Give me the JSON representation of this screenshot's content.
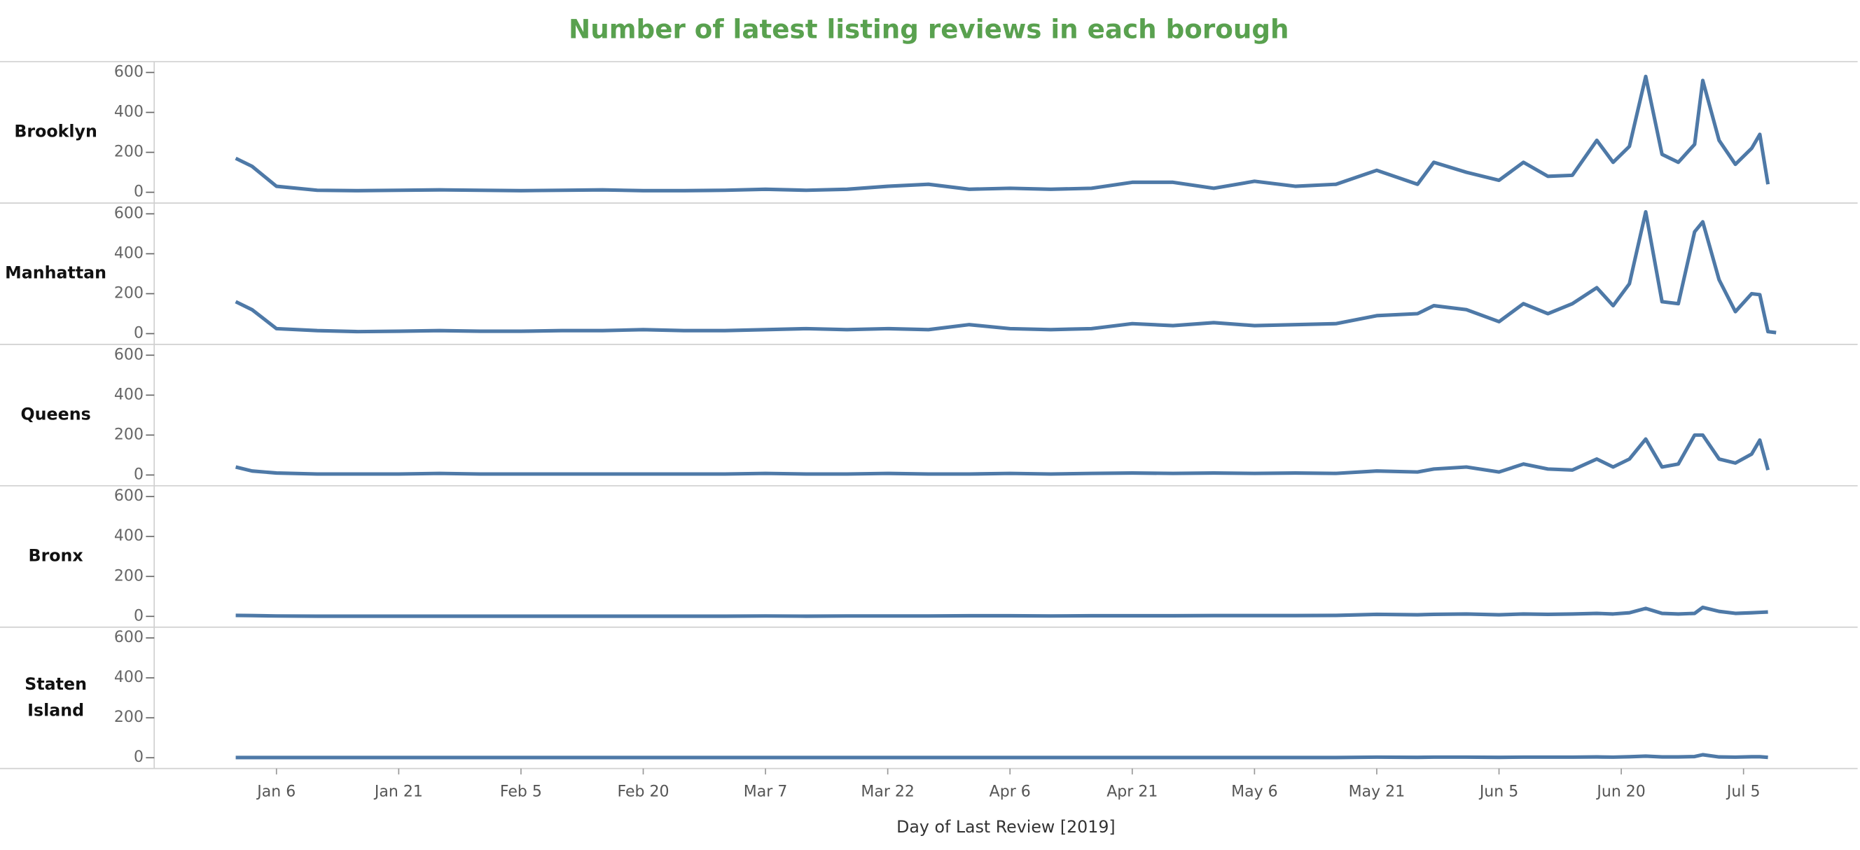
{
  "chart_data": {
    "type": "line",
    "title": "Number of latest listing reviews in each borough",
    "x_label": "Day of Last Review [2019]",
    "x": [
      "2019-01-01",
      "2019-01-03",
      "2019-01-06",
      "2019-01-11",
      "2019-01-16",
      "2019-01-21",
      "2019-01-26",
      "2019-01-31",
      "2019-02-05",
      "2019-02-10",
      "2019-02-15",
      "2019-02-20",
      "2019-02-25",
      "2019-03-02",
      "2019-03-07",
      "2019-03-12",
      "2019-03-17",
      "2019-03-22",
      "2019-03-27",
      "2019-04-01",
      "2019-04-06",
      "2019-04-11",
      "2019-04-16",
      "2019-04-21",
      "2019-04-26",
      "2019-05-01",
      "2019-05-06",
      "2019-05-11",
      "2019-05-16",
      "2019-05-21",
      "2019-05-26",
      "2019-05-28",
      "2019-06-01",
      "2019-06-05",
      "2019-06-08",
      "2019-06-11",
      "2019-06-14",
      "2019-06-17",
      "2019-06-19",
      "2019-06-21",
      "2019-06-23",
      "2019-06-25",
      "2019-06-27",
      "2019-06-29",
      "2019-06-30",
      "2019-07-02",
      "2019-07-04",
      "2019-07-06",
      "2019-07-07",
      "2019-07-08",
      "2019-07-09"
    ],
    "series": [
      {
        "name": "Brooklyn",
        "color": "#4e79a7",
        "values": [
          170,
          130,
          30,
          10,
          8,
          10,
          12,
          10,
          8,
          10,
          12,
          8,
          8,
          10,
          15,
          10,
          15,
          30,
          40,
          15,
          20,
          15,
          20,
          50,
          50,
          20,
          55,
          30,
          40,
          110,
          40,
          150,
          100,
          60,
          150,
          80,
          85,
          260,
          150,
          230,
          580,
          190,
          150,
          240,
          560,
          260,
          140,
          220,
          290,
          40,
          null
        ]
      },
      {
        "name": "Manhattan",
        "color": "#4e79a7",
        "values": [
          160,
          120,
          25,
          15,
          10,
          12,
          15,
          12,
          12,
          15,
          15,
          20,
          15,
          15,
          20,
          25,
          20,
          25,
          20,
          45,
          25,
          20,
          25,
          50,
          40,
          55,
          40,
          45,
          50,
          90,
          100,
          140,
          120,
          60,
          150,
          100,
          150,
          230,
          140,
          250,
          610,
          160,
          150,
          510,
          560,
          270,
          110,
          200,
          195,
          10,
          5
        ]
      },
      {
        "name": "Queens",
        "color": "#4e79a7",
        "values": [
          40,
          20,
          10,
          5,
          5,
          5,
          8,
          5,
          5,
          5,
          5,
          5,
          5,
          5,
          8,
          5,
          5,
          8,
          5,
          5,
          8,
          5,
          8,
          10,
          8,
          10,
          8,
          10,
          8,
          20,
          15,
          30,
          40,
          15,
          55,
          30,
          25,
          80,
          40,
          80,
          180,
          40,
          55,
          200,
          200,
          80,
          60,
          105,
          175,
          25,
          null
        ]
      },
      {
        "name": "Bronx",
        "color": "#4e79a7",
        "values": [
          5,
          4,
          2,
          1,
          1,
          1,
          1,
          1,
          1,
          1,
          1,
          1,
          1,
          1,
          2,
          1,
          2,
          2,
          2,
          3,
          3,
          2,
          3,
          3,
          3,
          4,
          4,
          4,
          5,
          10,
          8,
          10,
          12,
          8,
          12,
          10,
          12,
          15,
          12,
          18,
          40,
          15,
          12,
          15,
          45,
          25,
          15,
          18,
          20,
          22,
          null
        ]
      },
      {
        "name": "Staten Island",
        "color": "#4e79a7",
        "values": [
          1,
          1,
          1,
          1,
          1,
          1,
          1,
          1,
          1,
          1,
          1,
          1,
          1,
          1,
          1,
          1,
          1,
          1,
          1,
          1,
          1,
          1,
          1,
          1,
          1,
          1,
          1,
          1,
          1,
          3,
          2,
          3,
          3,
          2,
          3,
          3,
          3,
          4,
          3,
          5,
          8,
          4,
          4,
          6,
          15,
          4,
          3,
          5,
          5,
          2,
          null
        ]
      }
    ],
    "xlim": [
      "2018-12-22",
      "2019-07-19"
    ],
    "xticks": [
      {
        "value": "2019-01-06",
        "label": "Jan 6"
      },
      {
        "value": "2019-01-21",
        "label": "Jan 21"
      },
      {
        "value": "2019-02-05",
        "label": "Feb 5"
      },
      {
        "value": "2019-02-20",
        "label": "Feb 20"
      },
      {
        "value": "2019-03-07",
        "label": "Mar 7"
      },
      {
        "value": "2019-03-22",
        "label": "Mar 22"
      },
      {
        "value": "2019-04-06",
        "label": "Apr 6"
      },
      {
        "value": "2019-04-21",
        "label": "Apr 21"
      },
      {
        "value": "2019-05-06",
        "label": "May 6"
      },
      {
        "value": "2019-05-21",
        "label": "May 21"
      },
      {
        "value": "2019-06-05",
        "label": "Jun 5"
      },
      {
        "value": "2019-06-20",
        "label": "Jun 20"
      },
      {
        "value": "2019-07-05",
        "label": "Jul 5"
      }
    ],
    "ylim": [
      -54,
      654
    ],
    "yticks": [
      0,
      200,
      400,
      600
    ],
    "title_color": "#59a14f"
  }
}
